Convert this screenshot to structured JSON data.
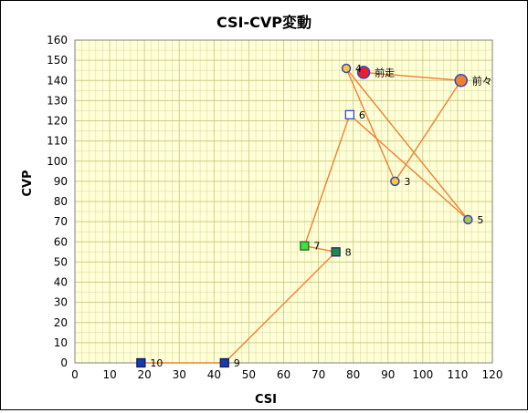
{
  "chart_data": {
    "type": "scatter",
    "title": "CSI-CVP変動",
    "xlabel": "CSI",
    "ylabel": "CVP",
    "xlim": [
      0,
      120
    ],
    "ylim": [
      0,
      160
    ],
    "xticks": [
      "0",
      "10",
      "20",
      "30",
      "40",
      "50",
      "60",
      "70",
      "80",
      "90",
      "100",
      "110",
      "120"
    ],
    "yticks": [
      "0",
      "10",
      "20",
      "30",
      "40",
      "50",
      "60",
      "70",
      "80",
      "90",
      "100",
      "110",
      "120",
      "130",
      "140",
      "150",
      "160"
    ],
    "grid": true,
    "line_order": [
      "10",
      "9",
      "8",
      "7",
      "6",
      "5",
      "4",
      "3",
      "前々",
      "前走"
    ],
    "points": [
      {
        "label": "前走",
        "x": 83,
        "y": 144,
        "marker": "circle-large",
        "fill": "#e8202a",
        "stroke": "#3344cc"
      },
      {
        "label": "前々",
        "x": 111,
        "y": 140,
        "marker": "circle-large",
        "fill": "#f08030",
        "stroke": "#3344cc"
      },
      {
        "label": "3",
        "x": 92,
        "y": 90,
        "marker": "circle",
        "fill": "#ffc830",
        "stroke": "#3344cc"
      },
      {
        "label": "4",
        "x": 78,
        "y": 146,
        "marker": "circle",
        "fill": "#ffc830",
        "stroke": "#3344cc"
      },
      {
        "label": "5",
        "x": 113,
        "y": 71,
        "marker": "circle",
        "fill": "#a8c848",
        "stroke": "#3344cc"
      },
      {
        "label": "6",
        "x": 79,
        "y": 123,
        "marker": "square",
        "fill": "#ffffff",
        "stroke": "#3344cc"
      },
      {
        "label": "7",
        "x": 66,
        "y": 58,
        "marker": "square",
        "fill": "#44dd44",
        "stroke": "#226622"
      },
      {
        "label": "8",
        "x": 75,
        "y": 55,
        "marker": "square",
        "fill": "#228844",
        "stroke": "#1a2a88"
      },
      {
        "label": "9",
        "x": 43,
        "y": 0,
        "marker": "square",
        "fill": "#1a3aa8",
        "stroke": "#0a1a66"
      },
      {
        "label": "10",
        "x": 19,
        "y": 0,
        "marker": "square",
        "fill": "#1a3aa8",
        "stroke": "#0a1a66"
      }
    ],
    "colors": {
      "plot_background": "#ffffd8",
      "grid": "#cccc88",
      "line": "#f08030"
    }
  }
}
